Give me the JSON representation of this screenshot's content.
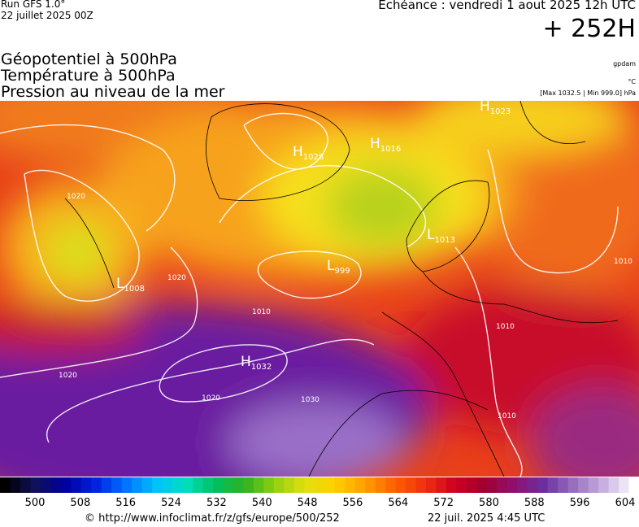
{
  "header": {
    "run": "Run GFS 1.0°",
    "run_date": "22 juillet 2025 00Z",
    "valid": "Echéance : vendredi 1 aout 2025 12h UTC",
    "lead": "+ 252H"
  },
  "legend": {
    "lines": [
      "Géopotentiel à 500hPa",
      "Température à 500hPa",
      "Pression au niveau de la mer"
    ],
    "units": [
      "gpdam",
      "°C",
      "[Max 1032.5 | Min 999.0] hPa"
    ]
  },
  "map": {
    "centers": [
      {
        "letter": "H",
        "value": 1028
      },
      {
        "letter": "H",
        "value": 1016
      },
      {
        "letter": "H",
        "value": 1023
      },
      {
        "letter": "L",
        "value": 999
      },
      {
        "letter": "L",
        "value": 1008
      },
      {
        "letter": "L",
        "value": 1013
      },
      {
        "letter": "H",
        "value": 1032
      }
    ],
    "isobar_labels": [
      1020,
      1020,
      1020,
      1010,
      1020,
      1030,
      1010,
      1010,
      1010
    ]
  },
  "colorbar": {
    "labels": [
      500,
      508,
      516,
      524,
      532,
      540,
      548,
      556,
      564,
      572,
      580,
      588,
      596,
      604
    ]
  },
  "footer": {
    "url": "© http://www.infoclimat.fr/z/gfs/europe/500/252",
    "time": "22 juil. 2025  4:45 UTC"
  }
}
